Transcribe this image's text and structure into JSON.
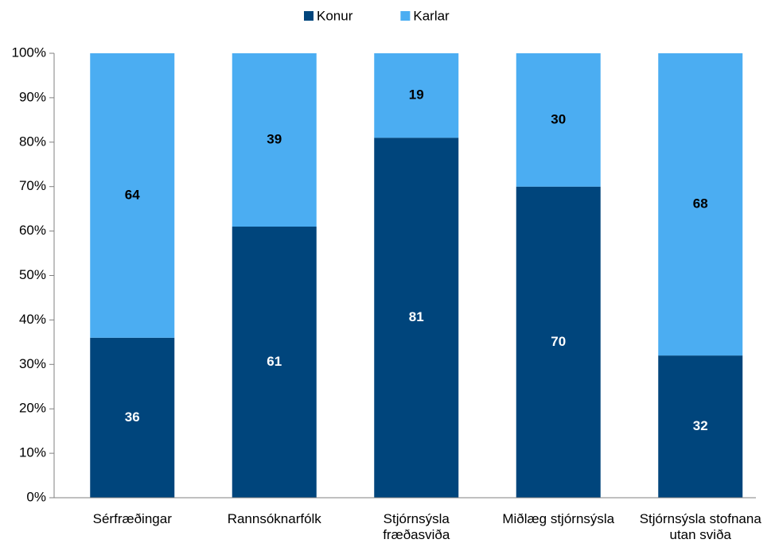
{
  "chart_data": {
    "type": "stacked_bar",
    "categories": [
      "Sérfræðingar",
      "Rannsóknarfólk",
      "Stjórnsýsla\nfræðasviða",
      "Miðlæg stjórnsýsla",
      "Stjórnsýsla stofnana\nutan sviða"
    ],
    "series": [
      {
        "name": "Konur",
        "color": "#00457c",
        "values": [
          36,
          61,
          81,
          70,
          32
        ]
      },
      {
        "name": "Karlar",
        "color": "#4badf2",
        "values": [
          64,
          39,
          19,
          30,
          68
        ]
      }
    ],
    "ylim": [
      0,
      100
    ],
    "yticks": [
      {
        "value": 0,
        "label": "0%"
      },
      {
        "value": 10,
        "label": "10%"
      },
      {
        "value": 20,
        "label": "20%"
      },
      {
        "value": 30,
        "label": "30%"
      },
      {
        "value": 40,
        "label": "40%"
      },
      {
        "value": 50,
        "label": "50%"
      },
      {
        "value": 60,
        "label": "60%"
      },
      {
        "value": 70,
        "label": "70%"
      },
      {
        "value": 80,
        "label": "80%"
      },
      {
        "value": 90,
        "label": "90%"
      },
      {
        "value": 100,
        "label": "100%"
      }
    ],
    "legend": "top"
  }
}
